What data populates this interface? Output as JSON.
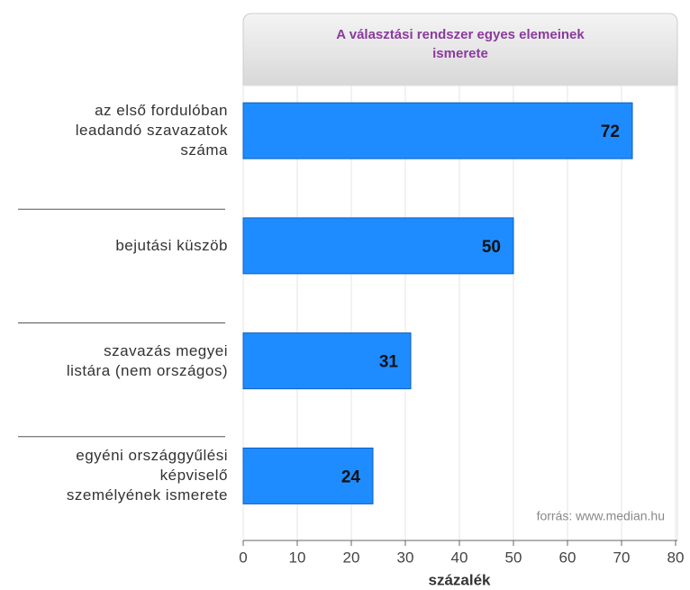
{
  "chart_data": {
    "type": "bar",
    "orientation": "horizontal",
    "title": "A választási rendszer egyes elemeinek\nismerete",
    "categories": [
      "az első fordulóban\nleadandó szavazatok\nszáma",
      "bejutási küszöb",
      "szavazás megyei\nlistára (nem országos)",
      "egyéni országgyűlési\nképviselő\nszemélyének ismerete"
    ],
    "values": [
      72,
      50,
      31,
      24
    ],
    "color": "#1e8cff",
    "xlim": [
      0,
      80
    ],
    "xticks": [
      0,
      10,
      20,
      30,
      40,
      50,
      60,
      70,
      80
    ],
    "xlabel": "százalék",
    "source": "forrás: www.median.hu",
    "grid": true
  }
}
